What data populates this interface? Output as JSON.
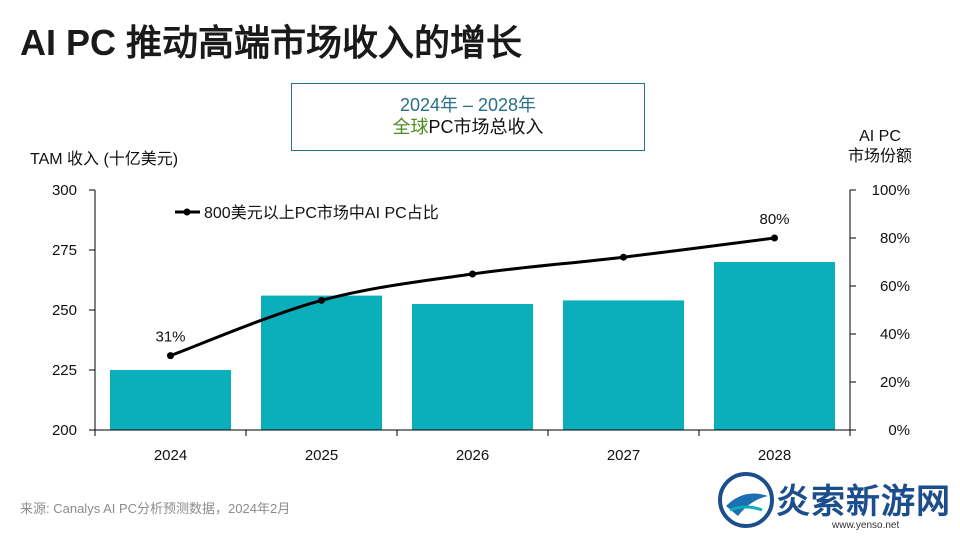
{
  "title": "AI PC 推动高端市场收入的增长",
  "subtitle_line1": "2024年 – 2028年",
  "subtitle_line2_accent": "全球",
  "subtitle_line2_rest": "PC市场总收入",
  "source": "来源: Canalys AI PC分析预测数据，2024年2月",
  "watermark": {
    "text": "炎索新游网",
    "url": "www.yenso.net"
  },
  "colors": {
    "bar": "#0aafbb",
    "line": "#000000",
    "accent": "#4e8a1f",
    "box_border": "#2a6f8a"
  },
  "chart_data": {
    "type": "bar",
    "categories": [
      "2024",
      "2025",
      "2026",
      "2027",
      "2028"
    ],
    "series": [
      {
        "name": "TAM 收入 (十亿美元)",
        "type": "bar",
        "axis": "left",
        "values": [
          225,
          256,
          252.5,
          254,
          270
        ]
      },
      {
        "name": "800美元以上PC市场中AI PC占比",
        "type": "line",
        "axis": "right",
        "values": [
          31,
          54,
          65,
          72,
          80
        ]
      }
    ],
    "ylabel": "TAM 收入 (十亿美元)",
    "ylim": [
      200,
      300
    ],
    "yticks": [
      "200",
      "225",
      "250",
      "275",
      "300"
    ],
    "y2label_line1": "AI PC",
    "y2label_line2": "市场份额",
    "y2lim": [
      0,
      100
    ],
    "y2ticks": [
      "0%",
      "20%",
      "40%",
      "60%",
      "80%",
      "100%"
    ],
    "legend": "800美元以上PC市场中AI PC占比",
    "data_labels": [
      {
        "index": 0,
        "text": "31%"
      },
      {
        "index": 4,
        "text": "80%"
      }
    ]
  }
}
